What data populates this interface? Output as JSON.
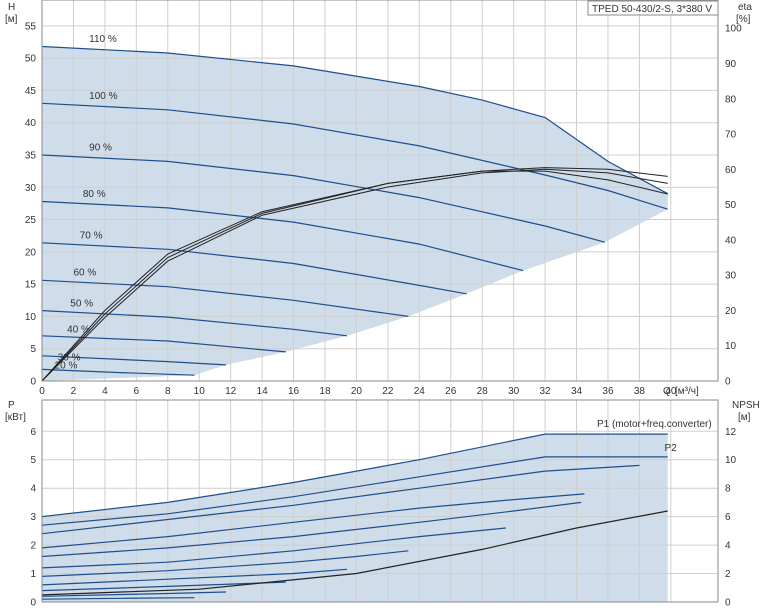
{
  "chart_data": [
    {
      "type": "line",
      "title": "TPED 50-430/2-S, 3*380 V",
      "xlabel": "Q [м³/ч]",
      "ylabel": "H [м]",
      "y_label_top": "H",
      "y_label_unit": "[м]",
      "y2label": "eta [%]",
      "y2_label_top": "eta",
      "y2_label_unit": "[%]",
      "x_label_short": "Q",
      "x_label_unit": "[м³/ч]",
      "xlim": [
        0,
        43
      ],
      "ylim": [
        0,
        59
      ],
      "y2lim": [
        0,
        108
      ],
      "x_ticks": [
        0,
        2,
        4,
        6,
        8,
        10,
        12,
        14,
        16,
        18,
        20,
        22,
        24,
        26,
        28,
        30,
        32,
        34,
        36,
        38,
        40
      ],
      "y_ticks": [
        0,
        5,
        10,
        15,
        20,
        25,
        30,
        35,
        40,
        45,
        50,
        55
      ],
      "y2_ticks": [
        0,
        10,
        20,
        30,
        40,
        50,
        60,
        70,
        80,
        90,
        100
      ],
      "grid": true,
      "colors": {
        "curve": "#1f4e8c",
        "area": "#c7d6e6",
        "eta": "#222222"
      },
      "series": [
        {
          "name": "110 %",
          "x": [
            0,
            8,
            16,
            24,
            28,
            32,
            36,
            39.8
          ],
          "y": [
            51.8,
            50.8,
            48.8,
            45.6,
            43.5,
            40.8,
            34.0,
            29.0
          ]
        },
        {
          "name": "100 %",
          "x": [
            0,
            8,
            16,
            24,
            32,
            36,
            39.8
          ],
          "y": [
            43.0,
            42.0,
            39.8,
            36.4,
            31.9,
            29.5,
            26.6
          ]
        },
        {
          "name": "90 %",
          "x": [
            0,
            8,
            16,
            24,
            32,
            35.8
          ],
          "y": [
            35.0,
            34.0,
            31.8,
            28.4,
            24.0,
            21.5
          ]
        },
        {
          "name": "80 %",
          "x": [
            0,
            8,
            16,
            24,
            30.6
          ],
          "y": [
            27.8,
            26.8,
            24.6,
            21.2,
            17.1
          ]
        },
        {
          "name": "70 %",
          "x": [
            0,
            8,
            16,
            24,
            27
          ],
          "y": [
            21.4,
            20.4,
            18.2,
            14.8,
            13.5
          ]
        },
        {
          "name": "60 %",
          "x": [
            0,
            8,
            16,
            23.3
          ],
          "y": [
            15.6,
            14.6,
            12.5,
            10.0
          ]
        },
        {
          "name": "50 %",
          "x": [
            0,
            8,
            16,
            19.4
          ],
          "y": [
            10.9,
            9.9,
            8.0,
            7.0
          ]
        },
        {
          "name": "40 %",
          "x": [
            0,
            8,
            15.5
          ],
          "y": [
            7.0,
            6.2,
            4.5
          ]
        },
        {
          "name": "30 %",
          "x": [
            0,
            8,
            11.7
          ],
          "y": [
            3.9,
            3.0,
            2.5
          ]
        },
        {
          "name": "20 %",
          "x": [
            0,
            5,
            9.7
          ],
          "y": [
            1.8,
            1.3,
            0.9
          ]
        }
      ],
      "eta": [
        {
          "x": [
            0,
            4,
            8,
            14,
            22,
            28,
            32,
            36,
            39.8
          ],
          "y": [
            0,
            20,
            36,
            48,
            56,
            59.5,
            59.5,
            57,
            53
          ]
        },
        {
          "x": [
            0,
            4,
            8,
            14,
            22,
            28,
            32,
            36,
            39.8
          ],
          "y": [
            0,
            18,
            34,
            47,
            55,
            59,
            60,
            59,
            56
          ]
        },
        {
          "x": [
            0,
            4,
            8,
            14,
            22,
            28,
            32,
            36,
            39.8
          ],
          "y": [
            0,
            19,
            35,
            47.5,
            56,
            59.5,
            60.5,
            60,
            58
          ]
        }
      ],
      "annotations": [
        {
          "text": "110 %",
          "x": 3.0,
          "y": 52.5
        },
        {
          "text": "100 %",
          "x": 3.0,
          "y": 43.7
        },
        {
          "text": "90 %",
          "x": 3.0,
          "y": 35.7
        },
        {
          "text": "80 %",
          "x": 2.6,
          "y": 28.5
        },
        {
          "text": "70 %",
          "x": 2.4,
          "y": 22.1
        },
        {
          "text": "60 %",
          "x": 2.0,
          "y": 16.3
        },
        {
          "text": "50 %",
          "x": 1.8,
          "y": 11.5
        },
        {
          "text": "40 %",
          "x": 1.6,
          "y": 7.5
        },
        {
          "text": "30 %",
          "x": 1.0,
          "y": 3.2
        },
        {
          "text": "20 %",
          "x": 0.8,
          "y": 1.9
        }
      ]
    },
    {
      "type": "line",
      "ylabel": "P [кВт]",
      "y_label_top": "P",
      "y_label_unit": "[кВт]",
      "y2label": "NPSH [м]",
      "y2_label_top": "NPSH",
      "y2_label_unit": "[м]",
      "xlim": [
        0,
        43
      ],
      "ylim": [
        0,
        7.1
      ],
      "y2lim": [
        0,
        14.2
      ],
      "y_ticks": [
        0,
        1,
        2,
        3,
        4,
        5,
        6
      ],
      "y2_ticks": [
        0,
        2,
        4,
        6,
        8,
        10,
        12
      ],
      "grid": true,
      "colors": {
        "p1": "#1f4e8c",
        "p2": "#1f4e8c",
        "area": "#c7d6e6",
        "npsh": "#222222"
      },
      "p1_upper": {
        "name": "P1 (motor+freq.converter)",
        "x": [
          0,
          8,
          16,
          24,
          32,
          39.8
        ],
        "y": [
          3.0,
          3.5,
          4.2,
          5.0,
          5.9,
          5.9
        ]
      },
      "p2_upper": {
        "name": "P2",
        "x": [
          0,
          8,
          16,
          24,
          32,
          39.8
        ],
        "y": [
          2.7,
          3.1,
          3.7,
          4.4,
          5.1,
          5.1
        ]
      },
      "series": [
        {
          "x": [
            0,
            8,
            16,
            24,
            32,
            38
          ],
          "y": [
            2.4,
            2.9,
            3.4,
            4.0,
            4.6,
            4.8
          ]
        },
        {
          "x": [
            0,
            8,
            16,
            24,
            30,
            34.5
          ],
          "y": [
            1.9,
            2.3,
            2.8,
            3.3,
            3.6,
            3.8
          ]
        },
        {
          "x": [
            0,
            8,
            16,
            24,
            30,
            34.3
          ],
          "y": [
            1.6,
            1.9,
            2.3,
            2.8,
            3.2,
            3.5
          ]
        },
        {
          "x": [
            0,
            8,
            16,
            24,
            29.5
          ],
          "y": [
            1.2,
            1.4,
            1.8,
            2.3,
            2.6
          ]
        },
        {
          "x": [
            0,
            8,
            16,
            20,
            23.3
          ],
          "y": [
            0.9,
            1.1,
            1.4,
            1.6,
            1.8
          ]
        },
        {
          "x": [
            0,
            8,
            16,
            19.4
          ],
          "y": [
            0.6,
            0.8,
            1.0,
            1.15
          ]
        },
        {
          "x": [
            0,
            8,
            15.5
          ],
          "y": [
            0.4,
            0.55,
            0.7
          ]
        },
        {
          "x": [
            0,
            8,
            11.7
          ],
          "y": [
            0.2,
            0.3,
            0.35
          ]
        },
        {
          "x": [
            0,
            5,
            9.7
          ],
          "y": [
            0.1,
            0.13,
            0.15
          ]
        }
      ],
      "npsh": {
        "x": [
          0,
          10,
          20,
          28,
          34,
          39.8
        ],
        "y": [
          0.5,
          0.9,
          2.0,
          3.7,
          5.2,
          6.4
        ]
      },
      "annotations": [
        {
          "text": "P1 (motor+freq.converter)",
          "x": 35.3,
          "y": 6.15
        },
        {
          "text": "P2",
          "x": 39.6,
          "y": 5.3
        }
      ]
    }
  ]
}
